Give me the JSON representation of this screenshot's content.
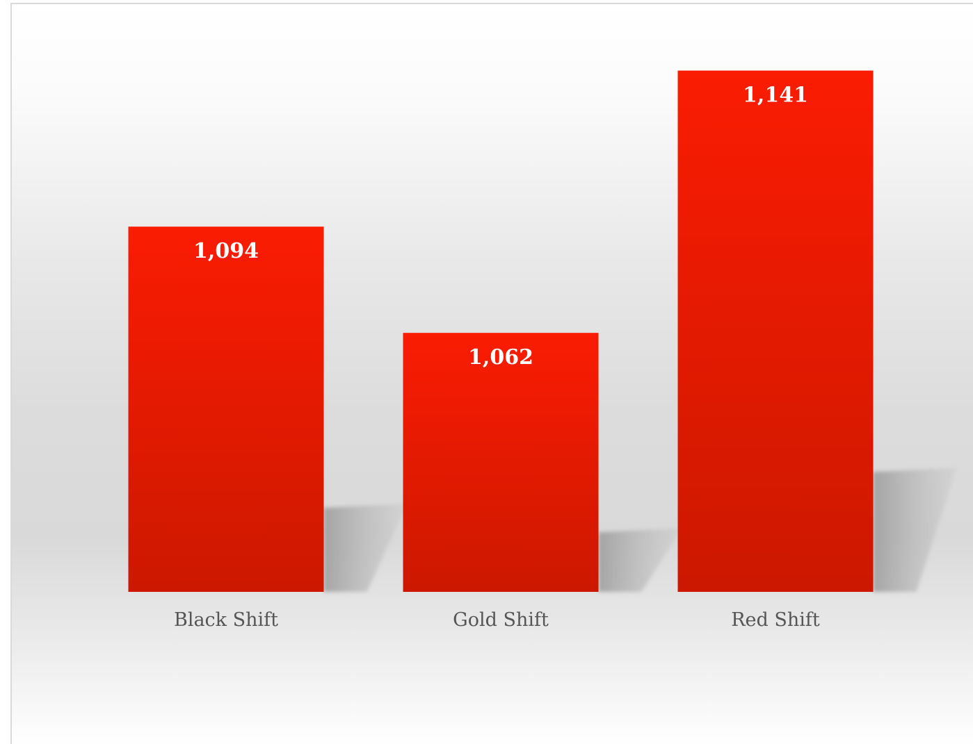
{
  "chart_data": {
    "type": "bar",
    "categories": [
      "Black Shift",
      "Gold Shift",
      "Red Shift"
    ],
    "values": [
      1094,
      1062,
      1141
    ],
    "value_labels": [
      "1,094",
      "1,062",
      "1,141"
    ],
    "title": "",
    "xlabel": "",
    "ylabel": "",
    "ylim": [
      984,
      1161
    ],
    "grid": false,
    "legend": "none",
    "colors": {
      "bar_top": "#fa1c03",
      "bar_bottom": "#cc1800",
      "label_text": "#555555",
      "value_text": "#ffffff"
    }
  }
}
